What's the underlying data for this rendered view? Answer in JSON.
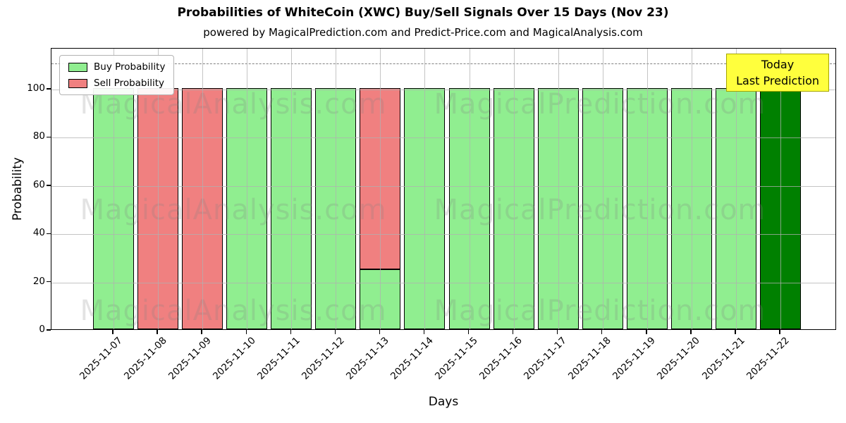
{
  "chart_data": {
    "type": "bar",
    "stacked": true,
    "title": "Probabilities of WhiteCoin (XWC) Buy/Sell Signals Over 15 Days (Nov 23)",
    "subtitle": "powered by MagicalPrediction.com and Predict-Price.com and MagicalAnalysis.com",
    "xlabel": "Days",
    "ylabel": "Probability",
    "ylim": [
      0,
      117
    ],
    "yticks": [
      0,
      20,
      40,
      60,
      80,
      100
    ],
    "dashed_line_y": 111,
    "grid": true,
    "categories": [
      "2025-11-07",
      "2025-11-08",
      "2025-11-09",
      "2025-11-10",
      "2025-11-11",
      "2025-11-12",
      "2025-11-13",
      "2025-11-14",
      "2025-11-15",
      "2025-11-16",
      "2025-11-17",
      "2025-11-18",
      "2025-11-19",
      "2025-11-20",
      "2025-11-21",
      "2025-11-22"
    ],
    "series": [
      {
        "name": "Buy Probability",
        "color": "#90EE90",
        "values": [
          100,
          0,
          0,
          100,
          100,
          100,
          25,
          100,
          100,
          100,
          100,
          100,
          100,
          100,
          100,
          100
        ]
      },
      {
        "name": "Sell Probability",
        "color": "#F08080",
        "values": [
          0,
          100,
          100,
          0,
          0,
          0,
          75,
          0,
          0,
          0,
          0,
          0,
          0,
          0,
          0,
          0
        ]
      }
    ],
    "today_bar": {
      "index": 15,
      "color": "#008000"
    },
    "bar_edge_color": "#000000",
    "legend": {
      "position": "upper-left",
      "entries": [
        {
          "label": "Buy Probability",
          "color": "#90EE90"
        },
        {
          "label": "Sell Probability",
          "color": "#F08080"
        }
      ]
    }
  },
  "annotation_box": {
    "line1": "Today",
    "line2": "Last Prediction",
    "bg_color": "#FFFF3D",
    "border_color": "#A6A600"
  },
  "watermarks": [
    {
      "text": "MagicalAnalysis.com"
    },
    {
      "text": "MagicalPrediction.com"
    }
  ]
}
